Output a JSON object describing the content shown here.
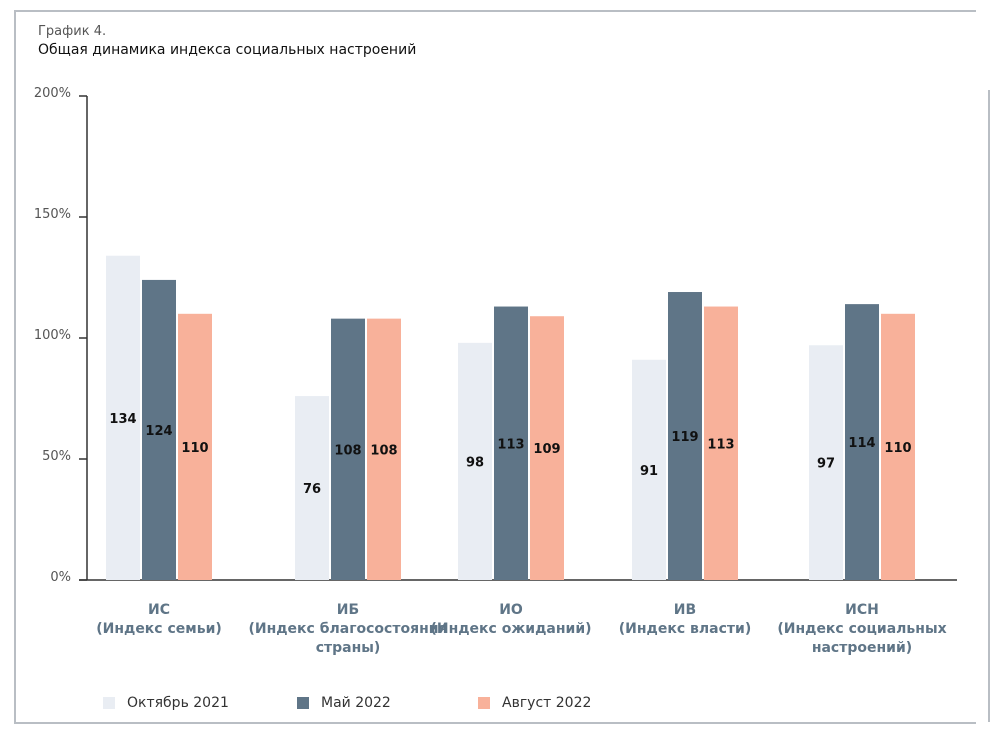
{
  "subtitle": "График 4.",
  "title": "Общая динамика индекса социальных настроений",
  "chart_data": {
    "type": "bar",
    "title": "Общая динамика индекса социальных настроений",
    "categories": [
      [
        "ИС",
        "(Индекс семьи)"
      ],
      [
        "ИБ",
        "(Индекс благосостояния",
        "страны)"
      ],
      [
        "ИО",
        "(Индекс ожиданий)"
      ],
      [
        "ИВ",
        "(Индекс власти)"
      ],
      [
        "ИСН",
        "(Индекс социальных",
        "настроений)"
      ]
    ],
    "series": [
      {
        "name": "Октябрь 2021",
        "color": "#e9edf3",
        "values": [
          134,
          76,
          98,
          91,
          97
        ]
      },
      {
        "name": "Май 2022",
        "color": "#5f7587",
        "values": [
          124,
          108,
          113,
          119,
          114
        ]
      },
      {
        "name": "Август 2022",
        "color": "#f8b19a",
        "values": [
          110,
          108,
          109,
          113,
          110
        ]
      }
    ],
    "yticks": [
      "0%",
      "50%",
      "100%",
      "150%",
      "200%"
    ],
    "ylim": [
      0,
      200
    ],
    "grid": false,
    "legend": "bottom"
  }
}
